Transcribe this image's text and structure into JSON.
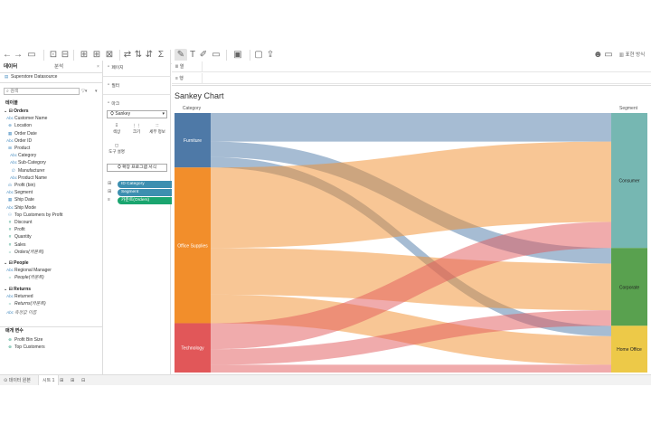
{
  "toolbar": {
    "undo": "←",
    "redo": "→",
    "save": "▭",
    "show_me_label": "표현 방식"
  },
  "left_panel": {
    "tabs": [
      "데이터",
      "분석"
    ],
    "datasource": "Superstore Datasource",
    "search_placeholder": "검색",
    "tables_header": "테이블",
    "groups": [
      {
        "name": "Orders",
        "fields": [
          {
            "icon": "Abc",
            "label": "Customer Name",
            "kind": "dim"
          },
          {
            "icon": "⊕",
            "label": "Location",
            "kind": "dim"
          },
          {
            "icon": "▦",
            "label": "Order Date",
            "kind": "dim"
          },
          {
            "icon": "Abc",
            "label": "Order ID",
            "kind": "dim"
          },
          {
            "icon": "⊞",
            "label": "Product",
            "kind": "dim"
          },
          {
            "icon": "Abc",
            "label": "Category",
            "kind": "dim",
            "indent": true
          },
          {
            "icon": "Abc",
            "label": "Sub-Category",
            "kind": "dim",
            "indent": true
          },
          {
            "icon": "∅",
            "label": "Manufacturer",
            "kind": "dim",
            "indent": true
          },
          {
            "icon": "Abc",
            "label": "Product Name",
            "kind": "dim",
            "indent": true
          },
          {
            "icon": "ılı",
            "label": "Profit (bin)",
            "kind": "dim"
          },
          {
            "icon": "Abc",
            "label": "Segment",
            "kind": "dim"
          },
          {
            "icon": "▦",
            "label": "Ship Date",
            "kind": "dim"
          },
          {
            "icon": "Abc",
            "label": "Ship Mode",
            "kind": "dim"
          },
          {
            "icon": "⚇",
            "label": "Top Customers by Profit",
            "kind": "dim"
          },
          {
            "icon": "#",
            "label": "Discount",
            "kind": "mea"
          },
          {
            "icon": "#",
            "label": "Profit",
            "kind": "mea"
          },
          {
            "icon": "#",
            "label": "Quantity",
            "kind": "mea"
          },
          {
            "icon": "#",
            "label": "Sales",
            "kind": "mea"
          },
          {
            "icon": "=",
            "label": "Orders(카운트)",
            "kind": "mea",
            "italic": true
          }
        ]
      },
      {
        "name": "People",
        "fields": [
          {
            "icon": "Abc",
            "label": "Regional Manager",
            "kind": "dim"
          },
          {
            "icon": "=",
            "label": "People(카운트)",
            "kind": "mea",
            "italic": true
          }
        ]
      },
      {
        "name": "Returns",
        "fields": [
          {
            "icon": "Abc",
            "label": "Returned",
            "kind": "dim"
          },
          {
            "icon": "=",
            "label": "Returns(카운트)",
            "kind": "mea",
            "italic": true
          }
        ]
      }
    ],
    "measure_names": "측정값 이름",
    "params_header": "매개 변수",
    "params": [
      "Profit Bin Size",
      "Top Customers"
    ]
  },
  "mid_panel": {
    "pages": "페이지",
    "filters": "필터",
    "marks": "마크",
    "mark_type": "Sankey",
    "buttons": [
      "색상",
      "크기",
      "세부 정보",
      "도구 설명"
    ],
    "extension": "확장 프로그램 서식",
    "pills": [
      {
        "icon": "⊞",
        "label": "ID Category",
        "color": "#3d8fb0"
      },
      {
        "icon": "⊞",
        "label": "Segment",
        "color": "#3d8fb0"
      },
      {
        "icon": "≡",
        "label": "카운트(Orders)",
        "color": "#1aa56f"
      }
    ]
  },
  "shelves": {
    "columns_icon": "iii 열",
    "rows_icon": "≡ 행"
  },
  "bottom": {
    "datasource_tab": "데이터 원본",
    "sheet_tab": "시트 1"
  },
  "chart_data": {
    "type": "sankey",
    "title": "Sankey Chart",
    "left_label": "Category",
    "right_label": "Segment",
    "sources": [
      {
        "name": "Furniture",
        "value": 21,
        "color": "#4e79a7"
      },
      {
        "name": "Office Supplies",
        "value": 60,
        "color": "#f28e2b"
      },
      {
        "name": "Technology",
        "value": 19,
        "color": "#e15759"
      }
    ],
    "targets": [
      {
        "name": "Consumer",
        "value": 52,
        "color": "#76b7b2"
      },
      {
        "name": "Corporate",
        "value": 30,
        "color": "#59a14f"
      },
      {
        "name": "Home Office",
        "value": 18,
        "color": "#edc948"
      }
    ],
    "links": [
      {
        "source": "Furniture",
        "target": "Consumer",
        "value": 11
      },
      {
        "source": "Furniture",
        "target": "Corporate",
        "value": 6
      },
      {
        "source": "Furniture",
        "target": "Home Office",
        "value": 4
      },
      {
        "source": "Office Supplies",
        "target": "Consumer",
        "value": 31
      },
      {
        "source": "Office Supplies",
        "target": "Corporate",
        "value": 18
      },
      {
        "source": "Office Supplies",
        "target": "Home Office",
        "value": 11
      },
      {
        "source": "Technology",
        "target": "Consumer",
        "value": 10
      },
      {
        "source": "Technology",
        "target": "Corporate",
        "value": 6
      },
      {
        "source": "Technology",
        "target": "Home Office",
        "value": 3
      }
    ]
  }
}
